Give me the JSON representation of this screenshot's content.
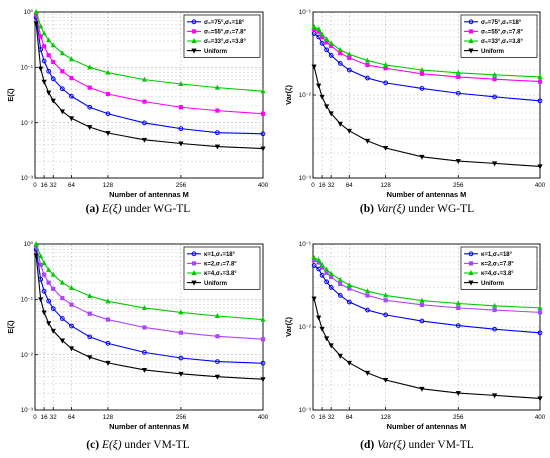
{
  "chart_data": [
    {
      "type": "line",
      "xlabel": "Number of antennas M",
      "ylabel": "E(ζ)",
      "yscale": "log",
      "xlim": [
        0,
        400
      ],
      "ylim": [
        0.001,
        1
      ],
      "xticks": [
        0,
        16,
        32,
        64,
        128,
        256,
        400
      ],
      "yticks": [
        0.001,
        0.01,
        0.1,
        1
      ],
      "ytick_labels": [
        "10⁻³",
        "10⁻²",
        "10⁻¹",
        "10⁰"
      ],
      "grid": true,
      "legend_position": "top-right",
      "caption_letter": "(a)",
      "caption_text": "under WG-TL",
      "caption_math_prefix": "E",
      "series": [
        {
          "name": "σ₀=75°,σ₁=18°",
          "color": "#0000ff",
          "marker": "circle",
          "x": [
            2,
            10,
            16,
            24,
            32,
            48,
            64,
            96,
            128,
            192,
            256,
            320,
            400
          ],
          "y": [
            0.8,
            0.21,
            0.13,
            0.085,
            0.062,
            0.041,
            0.03,
            0.019,
            0.0145,
            0.0099,
            0.0078,
            0.0066,
            0.0063
          ]
        },
        {
          "name": "σ₀=55°,σ₁=7.8°",
          "color": "#ff00ff",
          "marker": "square",
          "x": [
            2,
            10,
            16,
            24,
            32,
            48,
            64,
            96,
            128,
            192,
            256,
            320,
            400
          ],
          "y": [
            0.9,
            0.36,
            0.24,
            0.165,
            0.125,
            0.085,
            0.064,
            0.043,
            0.033,
            0.024,
            0.019,
            0.0165,
            0.0145
          ]
        },
        {
          "name": "σ₀=33°,σ₁=3.8°",
          "color": "#00cc00",
          "marker": "triangle-up",
          "x": [
            2,
            10,
            16,
            24,
            32,
            48,
            64,
            96,
            128,
            192,
            256,
            320,
            400
          ],
          "y": [
            1.0,
            0.55,
            0.41,
            0.31,
            0.25,
            0.18,
            0.14,
            0.1,
            0.08,
            0.06,
            0.05,
            0.043,
            0.037
          ]
        },
        {
          "name": "Uniform",
          "color": "#000000",
          "marker": "triangle-down",
          "x": [
            2,
            10,
            16,
            24,
            32,
            48,
            64,
            96,
            128,
            192,
            256,
            320,
            400
          ],
          "y": [
            0.62,
            0.095,
            0.055,
            0.035,
            0.025,
            0.016,
            0.012,
            0.0083,
            0.0065,
            0.0049,
            0.0042,
            0.0037,
            0.0034
          ]
        }
      ]
    },
    {
      "type": "line",
      "xlabel": "Number of antennas M",
      "ylabel": "Var(ζ)",
      "yscale": "log",
      "xlim": [
        0,
        400
      ],
      "ylim": [
        0.001,
        0.1
      ],
      "xticks": [
        0,
        16,
        32,
        64,
        128,
        256,
        400
      ],
      "yticks": [
        0.001,
        0.01,
        0.1
      ],
      "ytick_labels": [
        "10⁻³",
        "10⁻²",
        "10⁻¹"
      ],
      "grid": true,
      "legend_position": "top-right",
      "caption_letter": "(b)",
      "caption_text": "under WG-TL",
      "caption_math_prefix": "Var",
      "series": [
        {
          "name": "σ₀=75°,σ₁=18°",
          "color": "#0000ff",
          "marker": "circle",
          "x": [
            2,
            10,
            16,
            24,
            32,
            48,
            64,
            96,
            128,
            192,
            256,
            320,
            400
          ],
          "y": [
            0.055,
            0.05,
            0.042,
            0.035,
            0.03,
            0.024,
            0.02,
            0.016,
            0.014,
            0.012,
            0.0105,
            0.0095,
            0.0085
          ]
        },
        {
          "name": "σ₀=55°,σ₁=7.8°",
          "color": "#ff00ff",
          "marker": "square",
          "x": [
            2,
            10,
            16,
            24,
            32,
            48,
            64,
            96,
            128,
            192,
            256,
            320,
            400
          ],
          "y": [
            0.062,
            0.058,
            0.05,
            0.043,
            0.039,
            0.032,
            0.028,
            0.023,
            0.021,
            0.018,
            0.0165,
            0.0155,
            0.0145
          ]
        },
        {
          "name": "σ₀=33°,σ₁=3.8°",
          "color": "#00cc00",
          "marker": "triangle-up",
          "x": [
            2,
            10,
            16,
            24,
            32,
            48,
            64,
            96,
            128,
            192,
            256,
            320,
            400
          ],
          "y": [
            0.066,
            0.062,
            0.054,
            0.047,
            0.042,
            0.035,
            0.031,
            0.026,
            0.023,
            0.02,
            0.0185,
            0.0175,
            0.0165
          ]
        },
        {
          "name": "Uniform",
          "color": "#000000",
          "marker": "triangle-down",
          "x": [
            2,
            10,
            16,
            24,
            32,
            48,
            64,
            96,
            128,
            192,
            256,
            320,
            400
          ],
          "y": [
            0.022,
            0.013,
            0.0095,
            0.0073,
            0.006,
            0.0045,
            0.0037,
            0.0028,
            0.0023,
            0.0018,
            0.0016,
            0.0015,
            0.00138
          ]
        }
      ]
    },
    {
      "type": "line",
      "xlabel": "Number of antennas M",
      "ylabel": "E(ζ)",
      "yscale": "log",
      "xlim": [
        0,
        400
      ],
      "ylim": [
        0.001,
        1
      ],
      "xticks": [
        0,
        16,
        32,
        64,
        128,
        256,
        400
      ],
      "yticks": [
        0.001,
        0.01,
        0.1,
        1
      ],
      "ytick_labels": [
        "10⁻³",
        "10⁻²",
        "10⁻¹",
        "10⁰"
      ],
      "grid": true,
      "legend_position": "top-right",
      "caption_letter": "(c)",
      "caption_text": "under VM-TL",
      "caption_math_prefix": "E",
      "series": [
        {
          "name": "κ=1,σ₁=18°",
          "color": "#0000ff",
          "marker": "circle",
          "x": [
            2,
            10,
            16,
            24,
            32,
            48,
            64,
            96,
            128,
            192,
            256,
            320,
            400
          ],
          "y": [
            0.8,
            0.23,
            0.14,
            0.093,
            0.068,
            0.045,
            0.033,
            0.021,
            0.016,
            0.011,
            0.0087,
            0.0075,
            0.007
          ]
        },
        {
          "name": "κ=2,σ₁=7.8°",
          "color": "#aa44ff",
          "marker": "square",
          "x": [
            2,
            10,
            16,
            24,
            32,
            48,
            64,
            96,
            128,
            192,
            256,
            320,
            400
          ],
          "y": [
            0.9,
            0.42,
            0.28,
            0.2,
            0.155,
            0.105,
            0.08,
            0.055,
            0.043,
            0.031,
            0.025,
            0.0215,
            0.019
          ]
        },
        {
          "name": "κ=4,σ₁=3.8°",
          "color": "#00cc00",
          "marker": "triangle-up",
          "x": [
            2,
            10,
            16,
            24,
            32,
            48,
            64,
            96,
            128,
            192,
            256,
            320,
            400
          ],
          "y": [
            1.0,
            0.6,
            0.45,
            0.34,
            0.28,
            0.2,
            0.16,
            0.115,
            0.092,
            0.07,
            0.058,
            0.05,
            0.043
          ]
        },
        {
          "name": "Uniform",
          "color": "#000000",
          "marker": "triangle-down",
          "x": [
            2,
            10,
            16,
            24,
            32,
            48,
            64,
            96,
            128,
            192,
            256,
            320,
            400
          ],
          "y": [
            0.62,
            0.1,
            0.058,
            0.037,
            0.027,
            0.018,
            0.013,
            0.009,
            0.0071,
            0.0053,
            0.0045,
            0.004,
            0.0036
          ]
        }
      ]
    },
    {
      "type": "line",
      "xlabel": "Number of antennas M",
      "ylabel": "Var(ζ)",
      "yscale": "log",
      "xlim": [
        0,
        400
      ],
      "ylim": [
        0.001,
        0.1
      ],
      "xticks": [
        0,
        16,
        32,
        64,
        128,
        256,
        400
      ],
      "yticks": [
        0.001,
        0.01,
        0.1
      ],
      "ytick_labels": [
        "10⁻³",
        "10⁻²",
        "10⁻¹"
      ],
      "grid": true,
      "legend_position": "top-right",
      "caption_letter": "(d)",
      "caption_text": "under VM-TL",
      "caption_math_prefix": "Var",
      "series": [
        {
          "name": "κ=1,σ₁=18°",
          "color": "#0000ff",
          "marker": "circle",
          "x": [
            2,
            10,
            16,
            24,
            32,
            48,
            64,
            96,
            128,
            192,
            256,
            320,
            400
          ],
          "y": [
            0.055,
            0.05,
            0.042,
            0.035,
            0.03,
            0.024,
            0.02,
            0.016,
            0.014,
            0.0118,
            0.0104,
            0.0094,
            0.0085
          ]
        },
        {
          "name": "κ=2,σ₁=7.8°",
          "color": "#aa44ff",
          "marker": "square",
          "x": [
            2,
            10,
            16,
            24,
            32,
            48,
            64,
            96,
            128,
            192,
            256,
            320,
            400
          ],
          "y": [
            0.064,
            0.06,
            0.052,
            0.045,
            0.04,
            0.033,
            0.029,
            0.024,
            0.021,
            0.0185,
            0.017,
            0.016,
            0.015
          ]
        },
        {
          "name": "κ=4,σ₁=3.8°",
          "color": "#00cc00",
          "marker": "triangle-up",
          "x": [
            2,
            10,
            16,
            24,
            32,
            48,
            64,
            96,
            128,
            192,
            256,
            320,
            400
          ],
          "y": [
            0.068,
            0.064,
            0.056,
            0.049,
            0.044,
            0.037,
            0.032,
            0.027,
            0.024,
            0.0208,
            0.0192,
            0.018,
            0.017
          ]
        },
        {
          "name": "Uniform",
          "color": "#000000",
          "marker": "triangle-down",
          "x": [
            2,
            10,
            16,
            24,
            32,
            48,
            64,
            96,
            128,
            192,
            256,
            320,
            400
          ],
          "y": [
            0.022,
            0.013,
            0.0095,
            0.0073,
            0.006,
            0.0045,
            0.0037,
            0.0028,
            0.0023,
            0.0018,
            0.0016,
            0.0015,
            0.00138
          ]
        }
      ]
    }
  ]
}
